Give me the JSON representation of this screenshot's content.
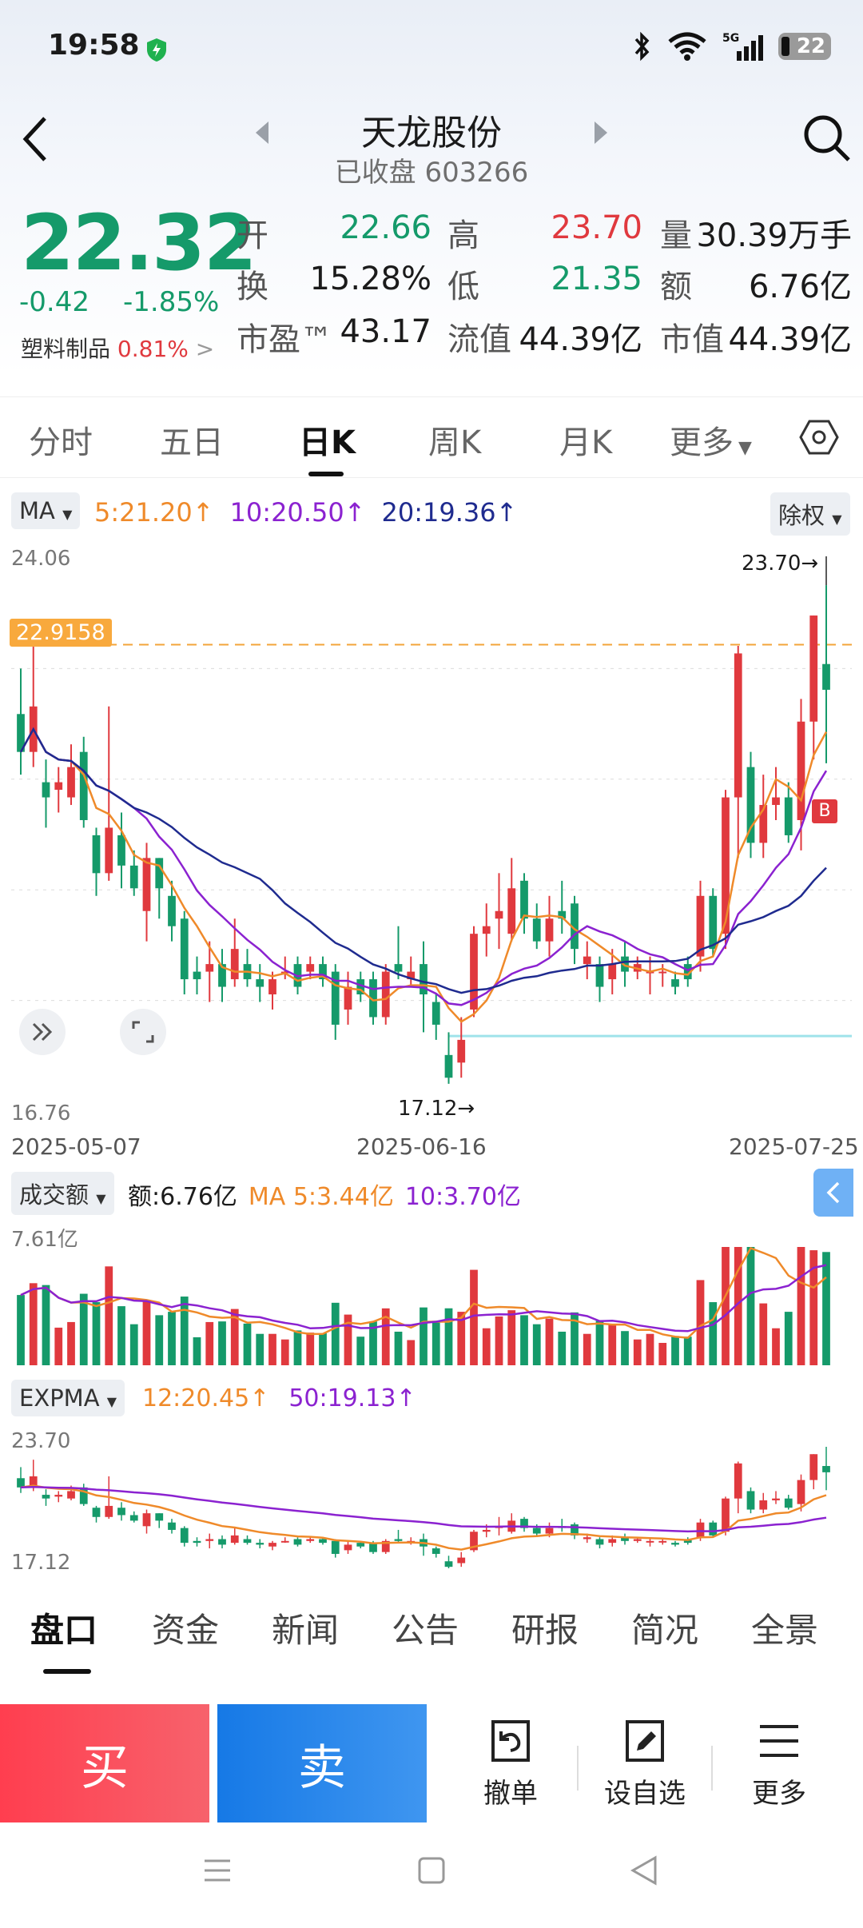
{
  "status": {
    "time": "19:58",
    "battery": "22",
    "network": "5G"
  },
  "header": {
    "title": "天龙股份",
    "status": "已收盘",
    "code": "603266"
  },
  "quote": {
    "price": "22.32",
    "change": "-0.42",
    "change_pct": "-1.85%",
    "sector": {
      "name": "塑料制品",
      "pct": "0.81%"
    },
    "fields": [
      {
        "label": "开",
        "value": "22.66",
        "color": "#159a6a"
      },
      {
        "label": "高",
        "value": "23.70",
        "color": "#e0393e"
      },
      {
        "label": "量",
        "value": "30.39万手",
        "color": "#1b1b1b"
      },
      {
        "label": "换",
        "value": "15.28%",
        "color": "#1b1b1b"
      },
      {
        "label": "低",
        "value": "21.35",
        "color": "#159a6a"
      },
      {
        "label": "额",
        "value": "6.76亿",
        "color": "#1b1b1b"
      },
      {
        "label": "市盈™",
        "value": "43.17",
        "color": "#1b1b1b"
      },
      {
        "label": "流值",
        "value": "44.39亿",
        "color": "#1b1b1b"
      },
      {
        "label": "市值",
        "value": "44.39亿",
        "color": "#1b1b1b"
      }
    ]
  },
  "period_tabs": [
    "分时",
    "五日",
    "日K",
    "周K",
    "月K",
    "更多"
  ],
  "active_period": "日K",
  "kline": {
    "indicator": "MA",
    "adjust": "除权",
    "ma": [
      {
        "label": "5:21.20↑",
        "color": "#ef8a2a"
      },
      {
        "label": "10:20.50↑",
        "color": "#8b22d0"
      },
      {
        "label": "20:19.36↑",
        "color": "#1f2b8f"
      }
    ],
    "y_top": "24.06",
    "y_bottom": "16.76",
    "price_line": "22.9158",
    "high_mark": "23.70→",
    "low_mark": "17.12→",
    "buy_marker": "B",
    "dates": [
      "2025-05-07",
      "2025-06-16",
      "2025-07-25"
    ]
  },
  "volume": {
    "indicator": "成交额",
    "amount": "额:6.76亿",
    "ma5": "MA 5:3.44亿",
    "ma10": "10:3.70亿",
    "y_top": "7.61亿"
  },
  "expma": {
    "indicator": "EXPMA",
    "e12": "12:20.45↑",
    "e50": "50:19.13↑",
    "y_top": "23.70",
    "y_bottom": "17.12"
  },
  "chart_data": {
    "type": "candlestick",
    "title": "",
    "ylim": [
      16.76,
      24.06
    ],
    "x_labels": [
      "2025-05-07",
      "2025-06-16",
      "2025-07-25"
    ],
    "candles": [
      [
        22.0,
        21.5,
        22.6,
        21.2
      ],
      [
        21.5,
        22.1,
        23.0,
        21.3
      ],
      [
        21.1,
        20.9,
        21.4,
        20.5
      ],
      [
        21.0,
        21.1,
        21.3,
        20.7
      ],
      [
        20.9,
        21.3,
        21.6,
        20.8
      ],
      [
        21.5,
        20.6,
        21.7,
        20.5
      ],
      [
        20.4,
        19.9,
        20.5,
        19.6
      ],
      [
        19.9,
        20.5,
        22.1,
        19.8
      ],
      [
        20.4,
        20.0,
        20.7,
        19.7
      ],
      [
        20.0,
        19.7,
        20.2,
        19.6
      ],
      [
        19.4,
        20.1,
        20.3,
        19.0
      ],
      [
        20.1,
        19.7,
        20.1,
        19.3
      ],
      [
        19.6,
        19.2,
        19.8,
        19.0
      ],
      [
        19.3,
        18.5,
        19.4,
        18.3
      ],
      [
        18.6,
        18.5,
        18.8,
        18.3
      ],
      [
        18.6,
        18.7,
        19.0,
        18.2
      ],
      [
        18.7,
        18.4,
        18.9,
        18.2
      ],
      [
        18.5,
        18.9,
        19.3,
        18.4
      ],
      [
        18.7,
        18.5,
        18.9,
        18.4
      ],
      [
        18.5,
        18.4,
        18.7,
        18.2
      ],
      [
        18.3,
        18.5,
        18.6,
        18.1
      ],
      [
        18.6,
        18.6,
        18.8,
        18.5
      ],
      [
        18.7,
        18.4,
        18.8,
        18.3
      ],
      [
        18.6,
        18.7,
        18.8,
        18.5
      ],
      [
        18.7,
        18.5,
        18.8,
        18.4
      ],
      [
        18.6,
        17.9,
        18.7,
        17.7
      ],
      [
        18.1,
        18.4,
        18.6,
        17.9
      ],
      [
        18.5,
        18.3,
        18.6,
        18.2
      ],
      [
        18.5,
        18.0,
        18.6,
        17.9
      ],
      [
        18.0,
        18.6,
        18.7,
        17.9
      ],
      [
        18.7,
        18.6,
        19.2,
        18.5
      ],
      [
        18.5,
        18.6,
        18.8,
        18.4
      ],
      [
        18.7,
        18.3,
        19.0,
        17.8
      ],
      [
        18.2,
        17.9,
        18.3,
        17.7
      ],
      [
        17.5,
        17.2,
        17.8,
        17.12
      ],
      [
        17.4,
        17.7,
        18.0,
        17.2
      ],
      [
        18.1,
        19.1,
        19.2,
        18.0
      ],
      [
        19.1,
        19.2,
        19.5,
        18.8
      ],
      [
        19.3,
        19.4,
        19.9,
        18.9
      ],
      [
        19.1,
        19.7,
        20.1,
        19.0
      ],
      [
        19.8,
        19.3,
        19.9,
        19.1
      ],
      [
        19.3,
        19.0,
        19.5,
        18.9
      ],
      [
        19.0,
        19.3,
        19.6,
        18.8
      ],
      [
        19.4,
        19.3,
        19.8,
        19.1
      ],
      [
        19.5,
        18.9,
        19.6,
        18.7
      ],
      [
        18.7,
        18.8,
        19.0,
        18.5
      ],
      [
        18.7,
        18.4,
        18.8,
        18.2
      ],
      [
        18.5,
        18.7,
        18.9,
        18.3
      ],
      [
        18.8,
        18.6,
        19.0,
        18.4
      ],
      [
        18.6,
        18.7,
        18.8,
        18.5
      ],
      [
        18.6,
        18.6,
        18.8,
        18.3
      ],
      [
        18.6,
        18.6,
        18.7,
        18.4
      ],
      [
        18.5,
        18.4,
        18.6,
        18.3
      ],
      [
        18.7,
        18.5,
        18.8,
        18.4
      ],
      [
        18.8,
        19.6,
        19.8,
        18.6
      ],
      [
        19.6,
        18.9,
        19.7,
        18.8
      ],
      [
        19.1,
        20.9,
        21.0,
        18.9
      ],
      [
        20.9,
        22.8,
        22.9,
        20.1
      ],
      [
        21.3,
        20.3,
        21.5,
        20.1
      ],
      [
        20.3,
        20.8,
        21.2,
        20.1
      ],
      [
        20.8,
        20.9,
        21.3,
        20.6
      ],
      [
        20.9,
        20.4,
        21.1,
        20.3
      ],
      [
        20.6,
        21.9,
        22.2,
        20.2
      ],
      [
        21.9,
        23.3,
        23.3,
        21.4
      ],
      [
        22.66,
        22.32,
        23.7,
        21.35
      ]
    ],
    "ma_lines": [
      {
        "name": "5",
        "color": "#ef8a2a"
      },
      {
        "name": "10",
        "color": "#8b22d0"
      },
      {
        "name": "20",
        "color": "#1f2b8f"
      }
    ]
  }
}
